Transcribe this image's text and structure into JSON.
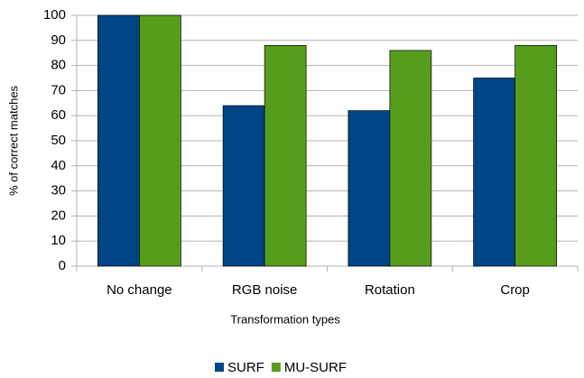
{
  "chart_data": {
    "type": "bar",
    "x_label": "Transformation types",
    "y_label": "% of correct matches",
    "categories": [
      "No change",
      "RGB noise",
      "Rotation",
      "Crop"
    ],
    "series": [
      {
        "name": "SURF",
        "color": "#004586",
        "values": [
          100,
          64,
          62,
          75
        ]
      },
      {
        "name": "MU-SURF",
        "color": "#579d1c",
        "values": [
          100,
          88,
          86,
          88
        ]
      }
    ],
    "ylim": [
      0,
      100
    ],
    "yticks": [
      0,
      10,
      20,
      30,
      40,
      50,
      60,
      70,
      80,
      90,
      100
    ],
    "grid": true,
    "legend": "bottom"
  }
}
